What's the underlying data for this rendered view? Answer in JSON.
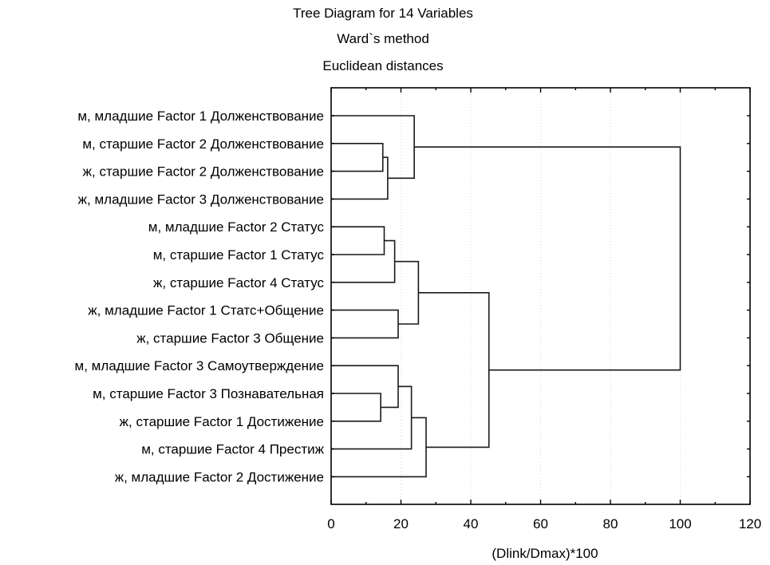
{
  "chart_data": {
    "type": "dendrogram",
    "title_lines": [
      "Tree Diagram for 14  Variables",
      "Ward`s method",
      "Euclidean distances"
    ],
    "xlabel": "(Dlink/Dmax)*100",
    "xlim": [
      0,
      120
    ],
    "xticks": [
      0,
      20,
      40,
      60,
      80,
      100,
      120
    ],
    "grid": true,
    "leaves": [
      "м, младшие Factor 1 Долженствование",
      "м, старшие Factor 2 Долженствование",
      "ж, старшие Factor 2 Долженствование",
      "ж, младшие Factor 3 Долженствование",
      "м, младшие Factor 2 Статус",
      "м, старшие Factor 1 Статус",
      "ж, старшие Factor 4 Статус",
      "ж, младшие Factor 1 Статс+Общение",
      "ж, старшие Factor 3 Общение",
      "м, младшие Factor 3 Самоутверждение",
      "м, старшие Factor 3 Познавательная",
      "ж, старшие Factor 1 Достижение",
      "м, старшие Factor 4 Престиж",
      "ж, младшие Factor 2 Достижение"
    ],
    "merges": [
      {
        "id": "c1",
        "a": "L1",
        "b": "L2",
        "height": 14.8
      },
      {
        "id": "c2",
        "a": "c1",
        "b": "L3",
        "height": 16.2
      },
      {
        "id": "c3",
        "a": "L0",
        "b": "c2",
        "height": 23.8
      },
      {
        "id": "c4",
        "a": "L4",
        "b": "L5",
        "height": 15.2
      },
      {
        "id": "c5",
        "a": "c4",
        "b": "L6",
        "height": 18.2
      },
      {
        "id": "c6",
        "a": "L7",
        "b": "L8",
        "height": 19.2
      },
      {
        "id": "c7",
        "a": "c5",
        "b": "c6",
        "height": 25.0
      },
      {
        "id": "c8",
        "a": "L10",
        "b": "L11",
        "height": 14.2
      },
      {
        "id": "c9",
        "a": "L9",
        "b": "c8",
        "height": 19.2
      },
      {
        "id": "c10",
        "a": "c9",
        "b": "L12",
        "height": 23.0
      },
      {
        "id": "c11",
        "a": "c10",
        "b": "L13",
        "height": 27.2
      },
      {
        "id": "c12",
        "a": "c7",
        "b": "c11",
        "height": 45.2
      },
      {
        "id": "c13",
        "a": "c3",
        "b": "c12",
        "height": 100.0
      }
    ]
  }
}
